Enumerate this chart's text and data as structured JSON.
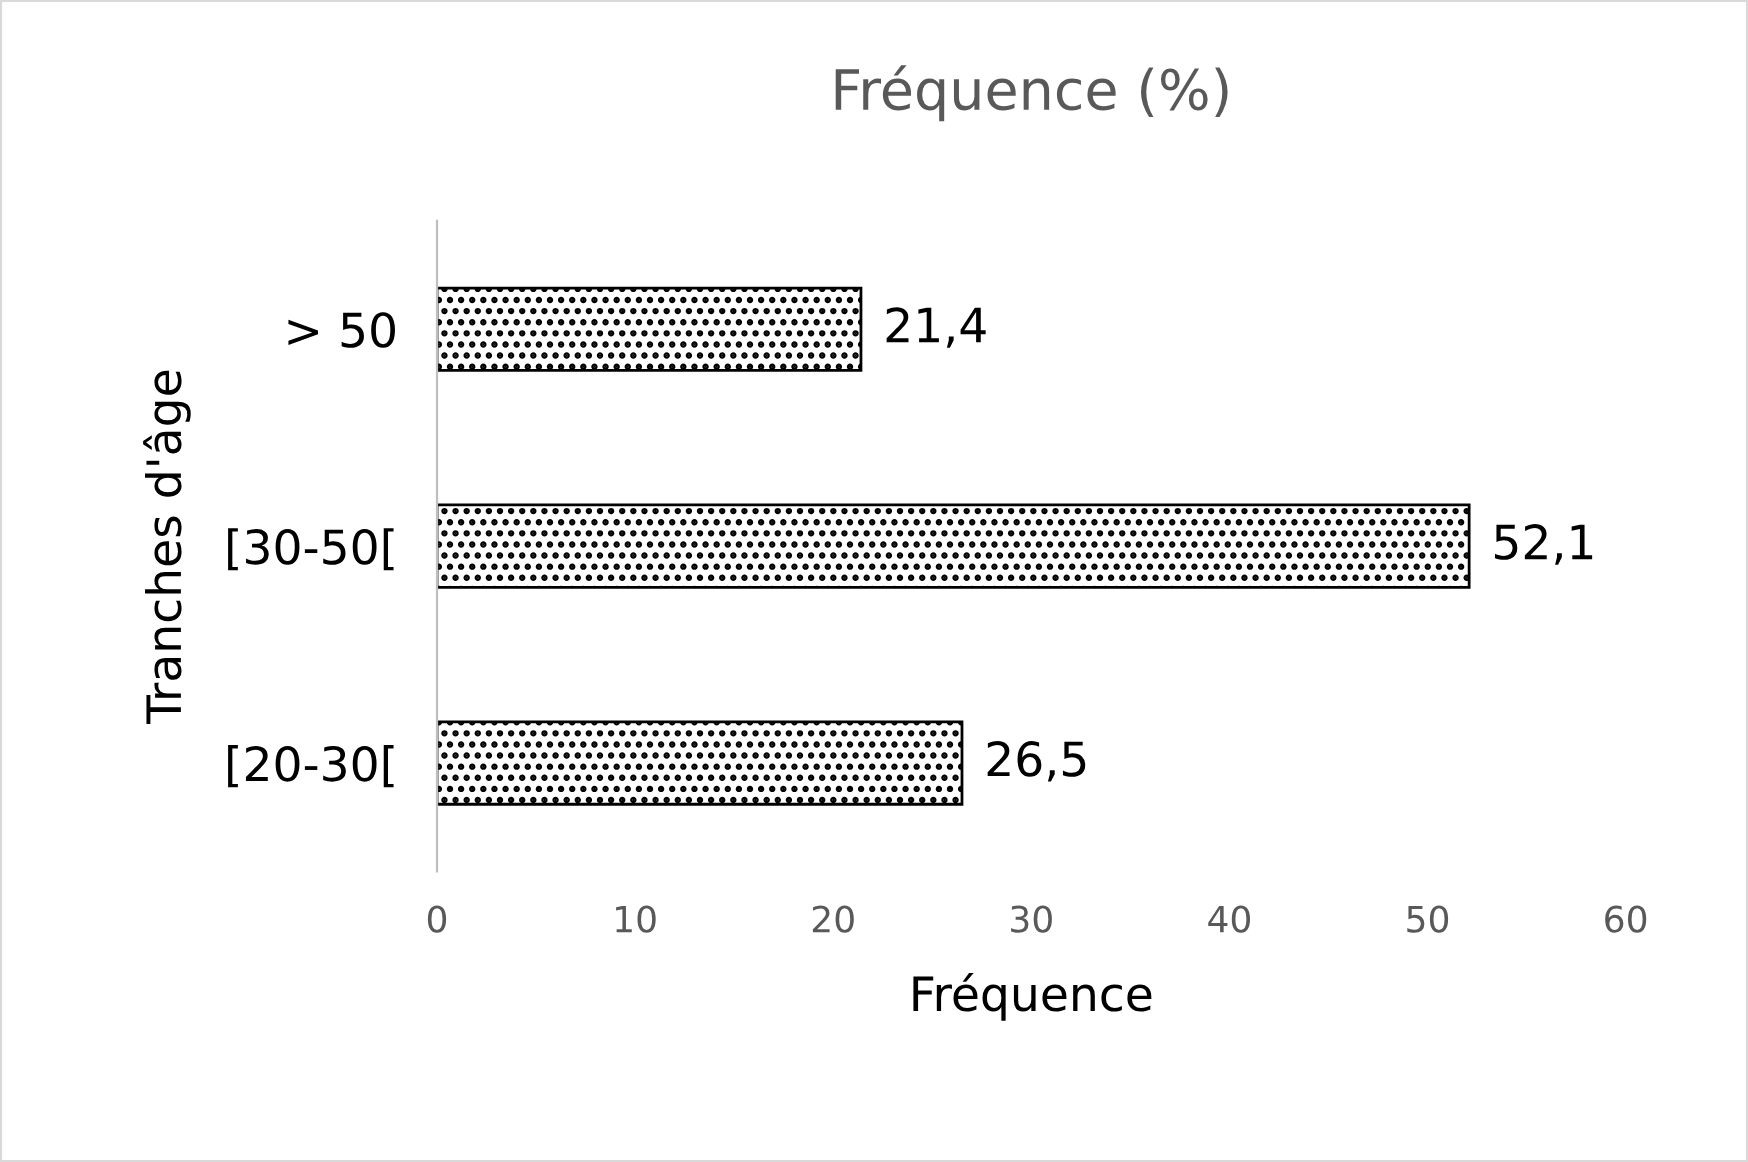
{
  "chart_data": {
    "type": "bar",
    "orientation": "horizontal",
    "title": "Fréquence (%)",
    "xlabel": "Fréquence",
    "ylabel": "Tranches d'âge",
    "categories": [
      "> 50",
      "[30-50[",
      "[20-30["
    ],
    "values": [
      21.4,
      52.1,
      26.5
    ],
    "value_labels": [
      "21,4",
      "52,1",
      "26,5"
    ],
    "color": "#000000",
    "xlim": [
      0,
      60
    ],
    "xticks": [
      0,
      10,
      20,
      30,
      40,
      50,
      60
    ],
    "grid": false
  }
}
